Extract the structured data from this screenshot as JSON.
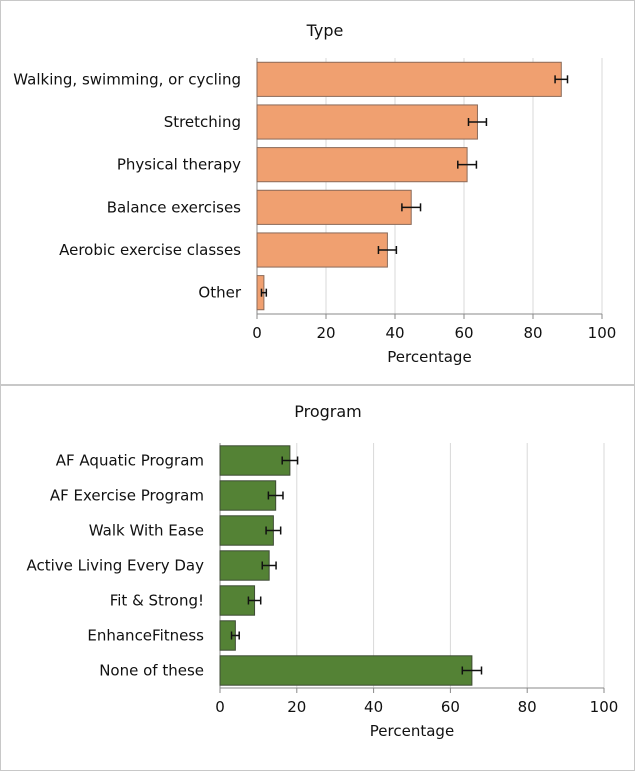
{
  "chart_data": [
    {
      "type": "bar",
      "orientation": "horizontal",
      "title": "Type",
      "xlabel": "Percentage",
      "ylabel": "",
      "xlim": [
        0,
        100
      ],
      "ticks": [
        0,
        20,
        40,
        60,
        80,
        100
      ],
      "grid": true,
      "bar_color": "#f0a070",
      "categories": [
        "Walking, swimming, or cycling",
        "Stretching",
        "Physical therapy",
        "Balance exercises",
        "Aerobic exercise classes",
        "Other"
      ],
      "values": [
        88.2,
        63.9,
        60.9,
        44.7,
        37.8,
        2.0
      ],
      "error": [
        1.8,
        2.6,
        2.7,
        2.7,
        2.6,
        0.7
      ]
    },
    {
      "type": "bar",
      "orientation": "horizontal",
      "title": "Program",
      "xlabel": "Percentage",
      "ylabel": "",
      "xlim": [
        0,
        100
      ],
      "ticks": [
        0,
        20,
        40,
        60,
        80,
        100
      ],
      "grid": true,
      "bar_color": "#548235",
      "categories": [
        "AF Aquatic Program",
        "AF Exercise Program",
        "Walk With Ease",
        "Active Living Every Day",
        "Fit & Strong!",
        "EnhanceFitness",
        "None of these"
      ],
      "values": [
        18.2,
        14.5,
        13.9,
        12.8,
        9.0,
        4.0,
        65.6
      ],
      "error": [
        2.0,
        1.9,
        1.9,
        1.8,
        1.6,
        1.0,
        2.5
      ]
    }
  ]
}
